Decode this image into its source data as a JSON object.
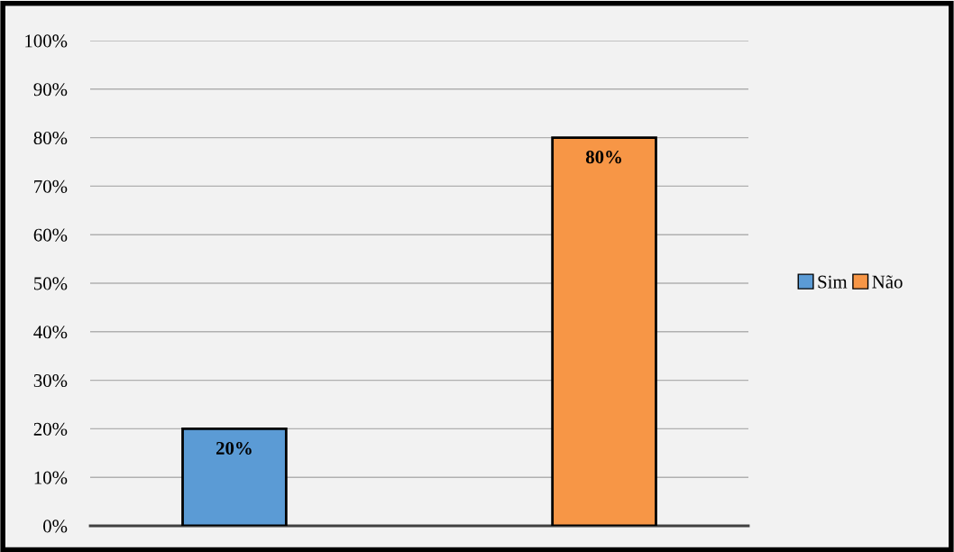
{
  "chart_data": {
    "type": "bar",
    "categories": [
      null,
      null
    ],
    "series": [
      {
        "name": "Sim",
        "color": "#5b9bd5",
        "values": [
          20,
          null
        ],
        "value_labels": [
          "20%",
          null
        ]
      },
      {
        "name": "Não",
        "color": "#f79646",
        "values": [
          null,
          80
        ],
        "value_labels": [
          null,
          "80%"
        ]
      }
    ],
    "ylim": [
      0,
      100
    ],
    "yticks": [
      {
        "value": 0,
        "label": "0%"
      },
      {
        "value": 10,
        "label": "10%"
      },
      {
        "value": 20,
        "label": "20%"
      },
      {
        "value": 30,
        "label": "30%"
      },
      {
        "value": 40,
        "label": "40%"
      },
      {
        "value": 50,
        "label": "50%"
      },
      {
        "value": 60,
        "label": "60%"
      },
      {
        "value": 70,
        "label": "70%"
      },
      {
        "value": 80,
        "label": "80%"
      },
      {
        "value": 90,
        "label": "90%"
      },
      {
        "value": 100,
        "label": "100%"
      }
    ],
    "grid": "y",
    "legend": "right"
  }
}
